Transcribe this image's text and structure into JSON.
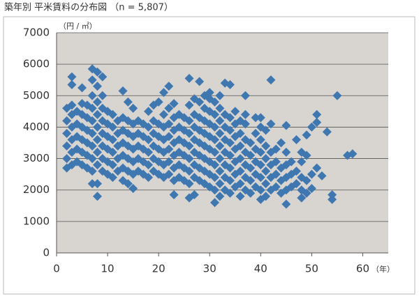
{
  "chart_data": {
    "type": "scatter",
    "title": "築年別 平米賃料の分布図 （n = 5,807）",
    "y_unit": "（円 / ㎡）",
    "x_unit": "（年）",
    "color": "#3f77b1",
    "grid": true,
    "xlim": [
      0,
      65
    ],
    "xticks": [
      0,
      10,
      20,
      30,
      40,
      50,
      60
    ],
    "ylim": [
      0,
      7000
    ],
    "yticks": [
      0,
      1000,
      2000,
      3000,
      4000,
      5000,
      6000,
      7000
    ],
    "x": [
      2,
      2,
      2,
      2,
      2,
      2,
      3,
      3,
      3,
      3,
      3,
      3,
      3,
      3,
      4,
      4,
      4,
      4,
      4,
      5,
      5,
      5,
      5,
      5,
      5,
      5,
      6,
      6,
      6,
      6,
      6,
      6,
      7,
      7,
      7,
      7,
      7,
      7,
      7,
      7,
      7,
      7,
      8,
      8,
      8,
      8,
      8,
      8,
      8,
      8,
      8,
      8,
      9,
      9,
      9,
      9,
      9,
      9,
      9,
      9,
      10,
      10,
      10,
      10,
      10,
      10,
      11,
      11,
      11,
      11,
      11,
      11,
      12,
      12,
      12,
      12,
      12,
      13,
      13,
      13,
      13,
      13,
      13,
      13,
      14,
      14,
      14,
      14,
      14,
      14,
      14,
      15,
      15,
      15,
      15,
      15,
      15,
      15,
      16,
      16,
      16,
      16,
      16,
      17,
      17,
      17,
      17,
      17,
      18,
      18,
      18,
      18,
      18,
      18,
      19,
      19,
      19,
      19,
      19,
      19,
      20,
      20,
      20,
      20,
      20,
      20,
      21,
      21,
      21,
      21,
      21,
      21,
      21,
      22,
      22,
      22,
      22,
      22,
      22,
      22,
      23,
      23,
      23,
      23,
      23,
      23,
      23,
      23,
      24,
      24,
      24,
      24,
      24,
      24,
      25,
      25,
      25,
      25,
      25,
      25,
      26,
      26,
      26,
      26,
      26,
      26,
      26,
      26,
      26,
      27,
      27,
      27,
      27,
      27,
      27,
      27,
      27,
      28,
      28,
      28,
      28,
      28,
      28,
      28,
      28,
      29,
      29,
      29,
      29,
      29,
      29,
      29,
      29,
      30,
      30,
      30,
      30,
      30,
      30,
      30,
      30,
      30,
      31,
      31,
      31,
      31,
      31,
      31,
      31,
      31,
      31,
      32,
      32,
      32,
      32,
      32,
      32,
      32,
      32,
      32,
      33,
      33,
      33,
      33,
      33,
      33,
      33,
      33,
      34,
      34,
      34,
      34,
      34,
      34,
      34,
      34,
      35,
      35,
      35,
      35,
      35,
      35,
      35,
      36,
      36,
      36,
      36,
      36,
      36,
      36,
      37,
      37,
      37,
      37,
      37,
      37,
      37,
      37,
      38,
      38,
      38,
      38,
      38,
      39,
      39,
      39,
      39,
      39,
      39,
      40,
      40,
      40,
      40,
      40,
      40,
      40,
      40,
      41,
      41,
      41,
      41,
      41,
      41,
      42,
      42,
      42,
      42,
      42,
      42,
      43,
      43,
      43,
      43,
      44,
      44,
      44,
      44,
      45,
      45,
      45,
      45,
      45,
      45,
      46,
      46,
      46,
      47,
      47,
      47,
      48,
      48,
      48,
      48,
      48,
      49,
      49,
      49,
      49,
      50,
      50,
      50,
      51,
      51,
      51,
      52,
      53,
      54,
      54,
      55,
      57,
      58
    ],
    "values": [
      2700,
      3000,
      3400,
      3800,
      4200,
      4600,
      5600,
      5350,
      2800,
      3200,
      3600,
      4000,
      4400,
      4700,
      2900,
      3300,
      3700,
      4100,
      4500,
      5250,
      2800,
      3200,
      3600,
      4000,
      4400,
      4750,
      2700,
      3100,
      3500,
      3900,
      4300,
      4700,
      5850,
      5500,
      2200,
      2600,
      3000,
      3400,
      3800,
      4200,
      4600,
      5000,
      5750,
      1800,
      2200,
      2800,
      3200,
      3600,
      4000,
      4400,
      4800,
      5300,
      5600,
      2600,
      3000,
      3400,
      3800,
      4200,
      4600,
      5000,
      2500,
      2900,
      3300,
      3700,
      4100,
      4500,
      2400,
      2800,
      3200,
      3600,
      4000,
      4400,
      2600,
      3000,
      3400,
      3800,
      4200,
      5150,
      2300,
      2700,
      3100,
      3500,
      3900,
      4300,
      2200,
      2600,
      3000,
      3400,
      3800,
      4200,
      4800,
      2050,
      2500,
      2900,
      3300,
      3700,
      4100,
      4600,
      2600,
      3000,
      3400,
      3800,
      4200,
      2500,
      2900,
      3300,
      3700,
      4100,
      2400,
      2800,
      3200,
      3600,
      4000,
      4500,
      2600,
      3000,
      3400,
      3800,
      4200,
      4700,
      2500,
      2900,
      3300,
      3700,
      4100,
      4800,
      2400,
      2800,
      3200,
      3600,
      4000,
      4400,
      5100,
      5300,
      2500,
      2900,
      3300,
      3700,
      4100,
      4600,
      1850,
      2300,
      2700,
      3100,
      3500,
      3900,
      4300,
      4750,
      2400,
      2800,
      3200,
      3600,
      4000,
      4400,
      2300,
      2700,
      3100,
      3500,
      3900,
      4300,
      5550,
      1750,
      2200,
      2600,
      3000,
      3400,
      3800,
      4200,
      4700,
      1850,
      2400,
      2800,
      3200,
      3600,
      4000,
      4400,
      4900,
      5450,
      2300,
      2700,
      3100,
      3500,
      3900,
      4300,
      4800,
      2200,
      2600,
      3000,
      3400,
      3800,
      4200,
      4600,
      5000,
      5100,
      2100,
      2500,
      2900,
      3300,
      3700,
      4100,
      4500,
      4900,
      1600,
      2000,
      2400,
      2800,
      3200,
      3600,
      4000,
      4400,
      4800,
      5000,
      1800,
      2200,
      2600,
      3000,
      3400,
      3800,
      4200,
      4600,
      5400,
      2000,
      2400,
      2800,
      3200,
      3600,
      4000,
      4400,
      5350,
      1900,
      2300,
      2700,
      3100,
      3500,
      3900,
      4300,
      2100,
      2500,
      2900,
      3300,
      3700,
      4100,
      4500,
      1800,
      2200,
      2600,
      3000,
      3400,
      3800,
      4200,
      5000,
      2000,
      2400,
      2800,
      3200,
      3600,
      4100,
      4400,
      1900,
      2300,
      2700,
      3100,
      3500,
      4300,
      2100,
      2500,
      2900,
      3300,
      3800,
      1700,
      2000,
      2400,
      2800,
      3200,
      3600,
      4000,
      4300,
      1800,
      2200,
      2600,
      3000,
      3400,
      3900,
      5500,
      2000,
      2400,
      2800,
      3200,
      4100,
      2100,
      2500,
      2900,
      3300,
      3500,
      1900,
      2300,
      2700,
      1550,
      4050,
      2000,
      2400,
      2800,
      3200,
      2100,
      2500,
      2900,
      2200,
      2600,
      3600,
      1750,
      2000,
      2400,
      2900,
      3200,
      1900,
      2300,
      3100,
      3750,
      2500,
      2050,
      4000,
      4400,
      4150,
      2700,
      2450,
      3850,
      1700,
      1850,
      5000,
      3100,
      3150
    ]
  }
}
